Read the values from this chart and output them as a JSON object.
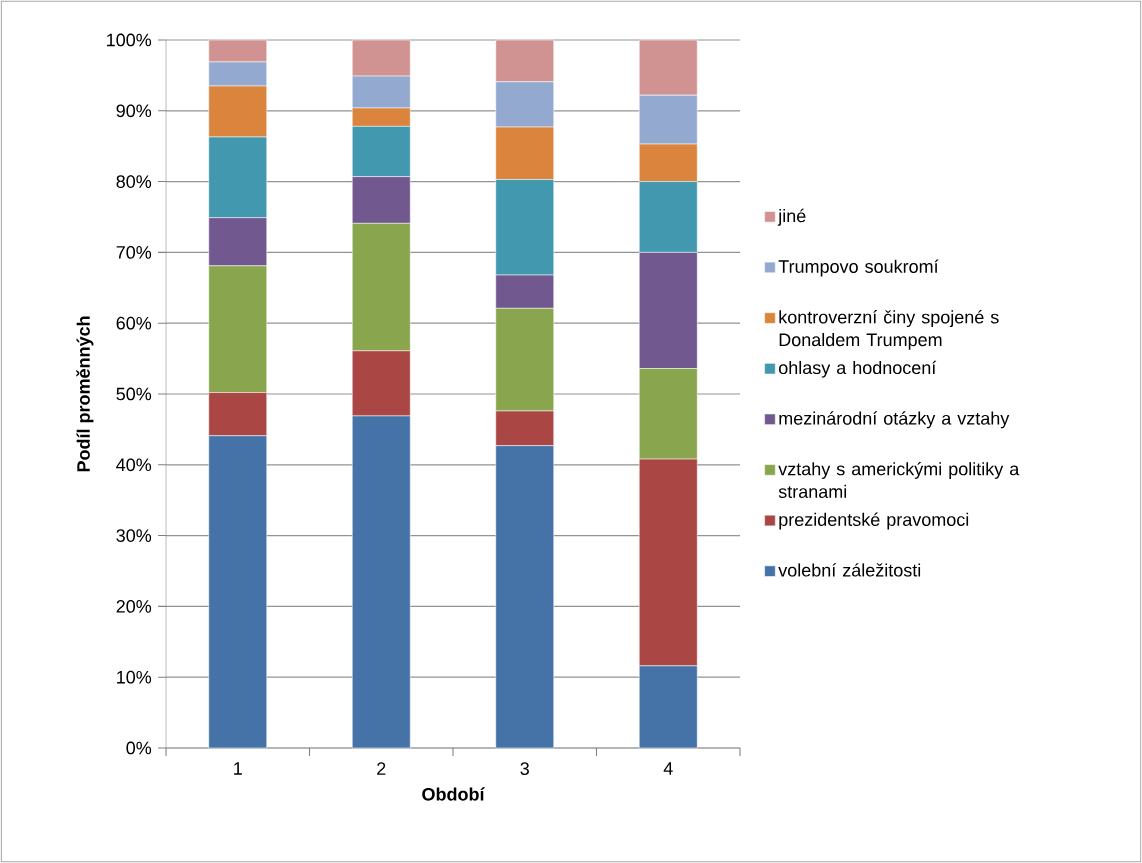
{
  "chart_data": {
    "type": "bar",
    "stacked": true,
    "xlabel": "Období",
    "ylabel": "Podíl proměnných",
    "categories": [
      "1",
      "2",
      "3",
      "4"
    ],
    "series": [
      {
        "name": "volební záležitosti",
        "color": "#4572a7",
        "values": [
          44.1,
          46.9,
          42.7,
          11.6
        ]
      },
      {
        "name": "prezidentské pravomoci",
        "color": "#aa4643",
        "values": [
          6.1,
          9.2,
          4.9,
          29.2
        ]
      },
      {
        "name": "vztahy s americkými politiky a stranami",
        "color": "#89a54e",
        "values": [
          17.9,
          18.0,
          14.5,
          12.8
        ]
      },
      {
        "name": "mezinárodní otázky a vztahy",
        "color": "#71588f",
        "values": [
          6.8,
          6.6,
          4.7,
          16.4
        ]
      },
      {
        "name": "ohlasy a hodnocení",
        "color": "#4198af",
        "values": [
          11.4,
          7.1,
          13.5,
          10.0
        ]
      },
      {
        "name": "kontroverzní činy spojené s Donaldem Trumpem",
        "color": "#db843d",
        "values": [
          7.2,
          2.6,
          7.4,
          5.3
        ]
      },
      {
        "name": "Trumpovo soukromí",
        "color": "#93a9cf",
        "values": [
          3.4,
          4.5,
          6.4,
          6.9
        ]
      },
      {
        "name": "jiné",
        "color": "#d19392",
        "values": [
          3.1,
          5.1,
          5.9,
          7.8
        ]
      }
    ],
    "ylim": [
      0,
      100
    ],
    "yticks": [
      {
        "value": 0,
        "label": "0%"
      },
      {
        "value": 10,
        "label": "10%"
      },
      {
        "value": 20,
        "label": "20%"
      },
      {
        "value": 30,
        "label": "30%"
      },
      {
        "value": 40,
        "label": "40%"
      },
      {
        "value": 50,
        "label": "50%"
      },
      {
        "value": 60,
        "label": "60%"
      },
      {
        "value": 70,
        "label": "70%"
      },
      {
        "value": 80,
        "label": "80%"
      },
      {
        "value": 90,
        "label": "90%"
      },
      {
        "value": 100,
        "label": "100%"
      }
    ],
    "grid": "y",
    "legend": "right"
  }
}
